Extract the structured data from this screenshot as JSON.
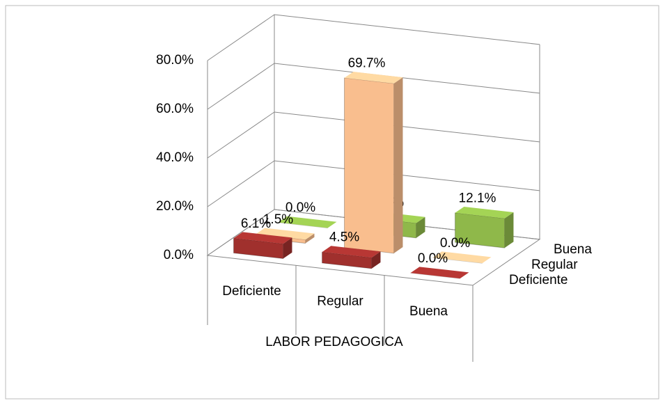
{
  "chart_data": {
    "type": "bar3d",
    "categories": [
      "Deficiente",
      "Regular",
      "Buena"
    ],
    "x_label": "LABOR PEDAGOGICA",
    "series": [
      {
        "name": "Deficiente",
        "color": "#a0302d",
        "values": [
          6.1,
          4.5,
          0.0
        ],
        "value_labels": [
          "6.1%",
          "4.5%",
          "0.0%"
        ]
      },
      {
        "name": "Regular",
        "color": "#f9be8e",
        "values": [
          1.5,
          69.7,
          0.0
        ],
        "value_labels": [
          "1.5%",
          "69.7%",
          "0.0%"
        ]
      },
      {
        "name": "Buena",
        "color": "#8fb84a",
        "values": [
          0.0,
          6.1,
          12.1
        ],
        "value_labels": [
          "0.0%",
          "6.1%",
          "12.1%"
        ]
      }
    ],
    "ylim": [
      0,
      80
    ],
    "yticks": [
      {
        "value": 0,
        "label": "0.0%"
      },
      {
        "value": 20,
        "label": "20.0%"
      },
      {
        "value": 40,
        "label": "40.0%"
      },
      {
        "value": 60,
        "label": "60.0%"
      },
      {
        "value": 80,
        "label": "80.0%"
      }
    ],
    "grid": true
  }
}
